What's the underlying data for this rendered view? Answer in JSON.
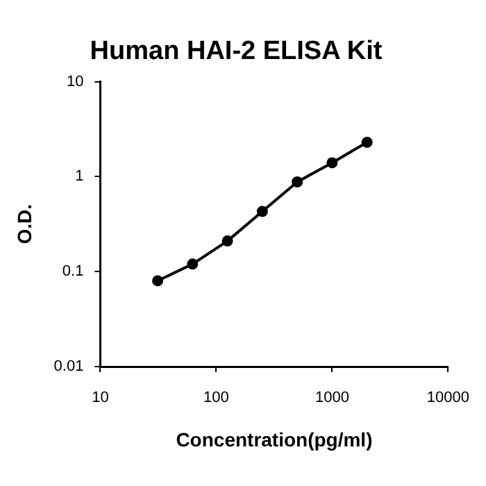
{
  "chart_data": {
    "type": "line",
    "title": "Human HAI-2 ELISA Kit",
    "xlabel": "Concentration(pg/ml)",
    "ylabel": "O.D.",
    "x": [
      31.25,
      62.5,
      125,
      250,
      500,
      1000,
      2000
    ],
    "series": [
      {
        "color": "#000000",
        "values": [
          0.08,
          0.12,
          0.21,
          0.43,
          0.88,
          1.4,
          2.3
        ]
      }
    ],
    "log": "xy",
    "xlim": [
      10,
      10000
    ],
    "xticks": [
      10,
      100,
      1000,
      10000
    ],
    "ylim": [
      0.01,
      10
    ],
    "yticks": [
      0.01,
      0.1,
      1,
      10
    ],
    "grid": false,
    "legend": false,
    "marker": "circle",
    "line_style": "solid"
  }
}
